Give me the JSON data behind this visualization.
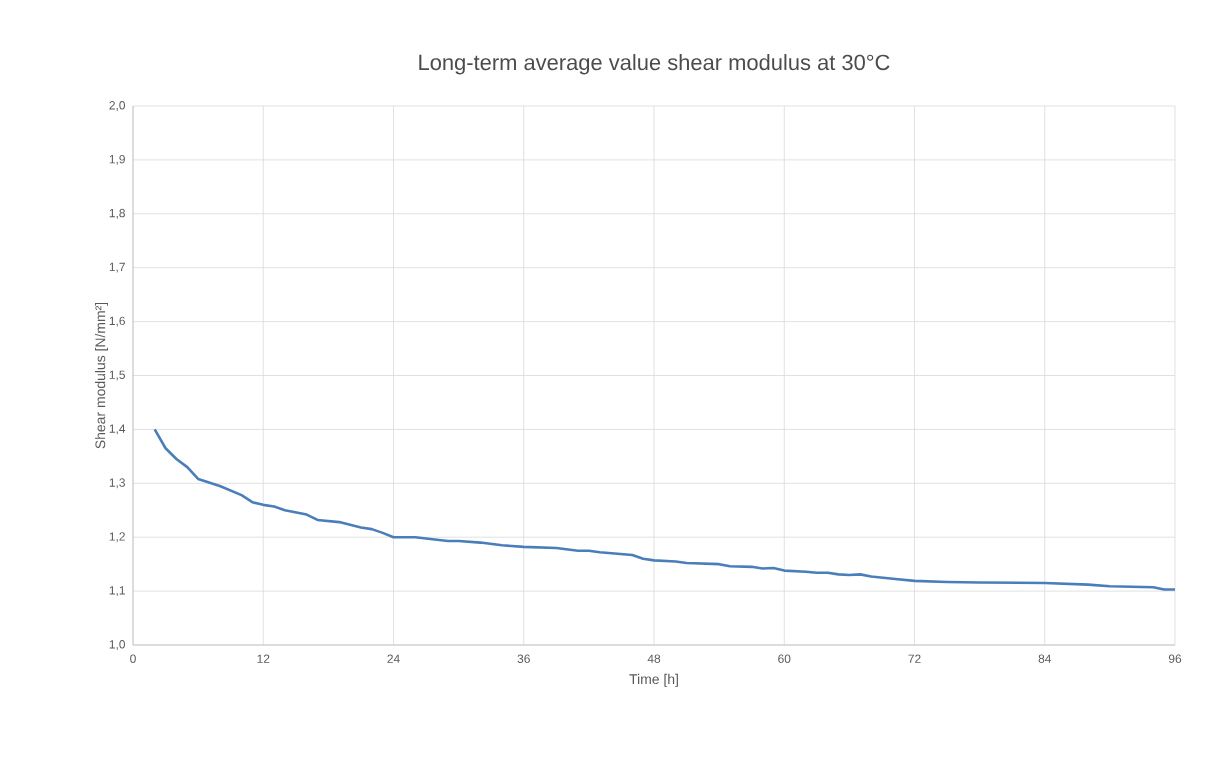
{
  "chart_data": {
    "type": "line",
    "title": "Long-term average value shear modulus at 30°C",
    "xlabel": "Time [h]",
    "ylabel": "Shear modulus [N/mm²]",
    "x": [
      2,
      3,
      4,
      5,
      6,
      8,
      10,
      11,
      12,
      13,
      14,
      16,
      17,
      19,
      21,
      22,
      23,
      24,
      26,
      29,
      30,
      32,
      34,
      36,
      39,
      41,
      42,
      43,
      46,
      47,
      48,
      50,
      51,
      54,
      55,
      57,
      58,
      59,
      60,
      62,
      63,
      64,
      65,
      66,
      67,
      68,
      70,
      72,
      75,
      78,
      84,
      88,
      90,
      94,
      95,
      96
    ],
    "series": [
      {
        "color": "#4a7ebb",
        "values": [
          1.4,
          1.365,
          1.345,
          1.33,
          1.308,
          1.295,
          1.278,
          1.265,
          1.26,
          1.257,
          1.25,
          1.242,
          1.232,
          1.228,
          1.218,
          1.215,
          1.208,
          1.2,
          1.2,
          1.193,
          1.193,
          1.19,
          1.185,
          1.182,
          1.18,
          1.175,
          1.175,
          1.172,
          1.167,
          1.16,
          1.157,
          1.155,
          1.152,
          1.15,
          1.146,
          1.145,
          1.142,
          1.143,
          1.138,
          1.136,
          1.134,
          1.134,
          1.131,
          1.13,
          1.131,
          1.127,
          1.123,
          1.119,
          1.117,
          1.116,
          1.115,
          1.112,
          1.109,
          1.107,
          1.103,
          1.103
        ]
      }
    ],
    "xlim": [
      0,
      96
    ],
    "xticks": [
      0,
      12,
      24,
      36,
      48,
      60,
      72,
      84,
      96
    ],
    "ylim": [
      1.0,
      2.0
    ],
    "yticks": [
      {
        "value": 1.0,
        "label": "1,0"
      },
      {
        "value": 1.1,
        "label": "1,1"
      },
      {
        "value": 1.2,
        "label": "1,2"
      },
      {
        "value": 1.3,
        "label": "1,3"
      },
      {
        "value": 1.4,
        "label": "1,4"
      },
      {
        "value": 1.5,
        "label": "1,5"
      },
      {
        "value": 1.6,
        "label": "1,6"
      },
      {
        "value": 1.7,
        "label": "1,7"
      },
      {
        "value": 1.8,
        "label": "1,8"
      },
      {
        "value": 1.9,
        "label": "1,9"
      },
      {
        "value": 2.0,
        "label": "2,0"
      }
    ],
    "grid": true,
    "marker": "none",
    "line_style": "solid"
  }
}
